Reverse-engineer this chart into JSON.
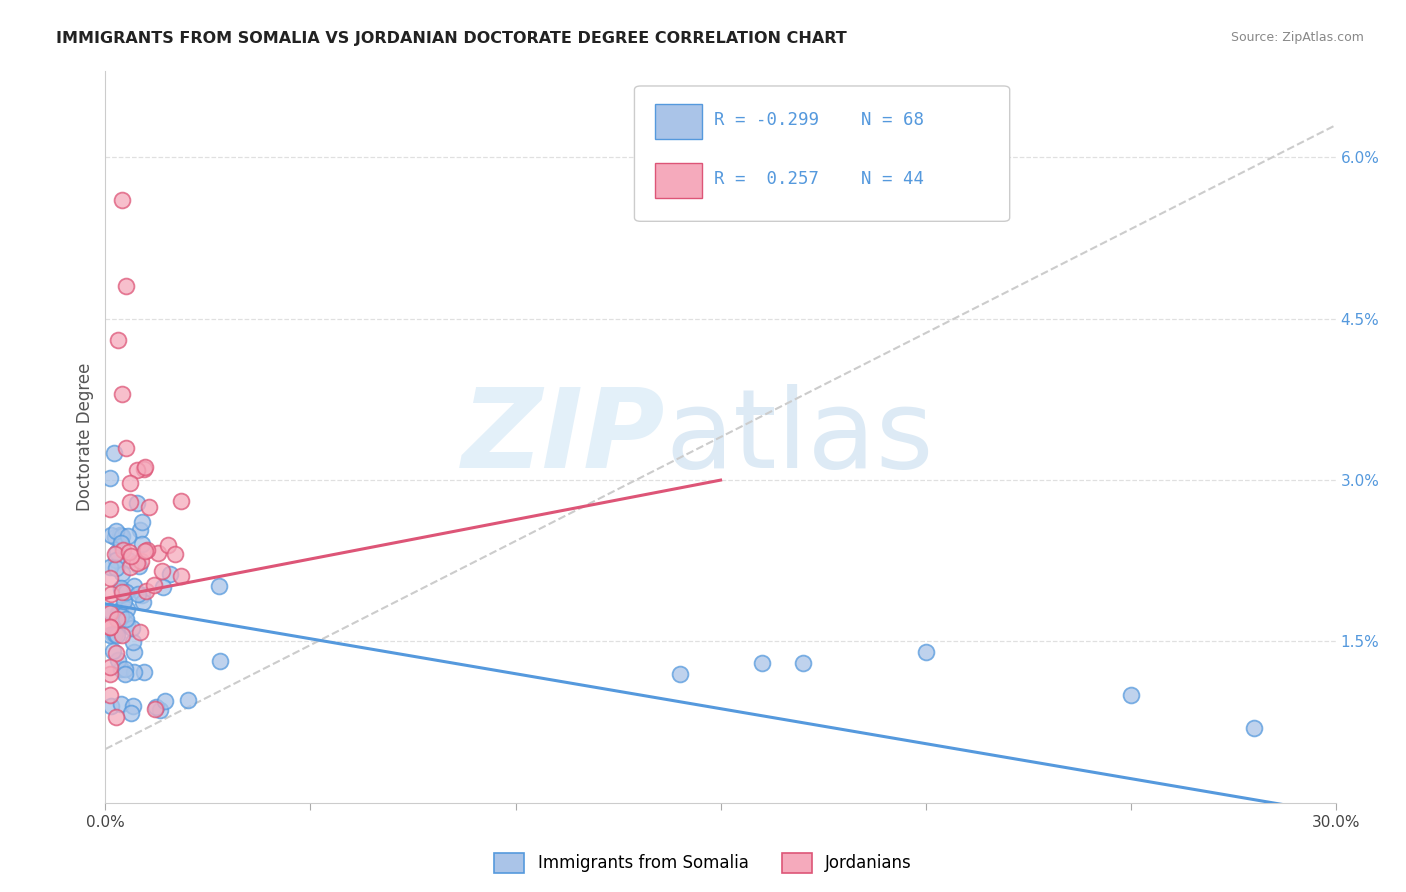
{
  "title": "IMMIGRANTS FROM SOMALIA VS JORDANIAN DOCTORATE DEGREE CORRELATION CHART",
  "source": "Source: ZipAtlas.com",
  "ylabel": "Doctorate Degree",
  "xlim": [
    0,
    0.3
  ],
  "ylim": [
    0,
    0.068
  ],
  "color_somalia": "#aac4e8",
  "color_jordan": "#f5aabc",
  "color_trend_somalia": "#5599dd",
  "color_trend_jordan": "#dd5577",
  "color_trend_dashed": "#cccccc",
  "background_color": "#ffffff",
  "grid_color": "#e0e0e0",
  "legend_R1": "R = -0.299",
  "legend_N1": "N = 68",
  "legend_R2": "R =  0.257",
  "legend_N2": "N = 44",
  "trend_som_x0": 0.0,
  "trend_som_y0": 0.0185,
  "trend_som_x1": 0.3,
  "trend_som_y1": -0.001,
  "trend_jor_x0": 0.0,
  "trend_jor_y0": 0.019,
  "trend_jor_x1": 0.15,
  "trend_jor_y1": 0.03,
  "trend_dash_x0": 0.0,
  "trend_dash_y0": 0.005,
  "trend_dash_x1": 0.3,
  "trend_dash_y1": 0.063
}
